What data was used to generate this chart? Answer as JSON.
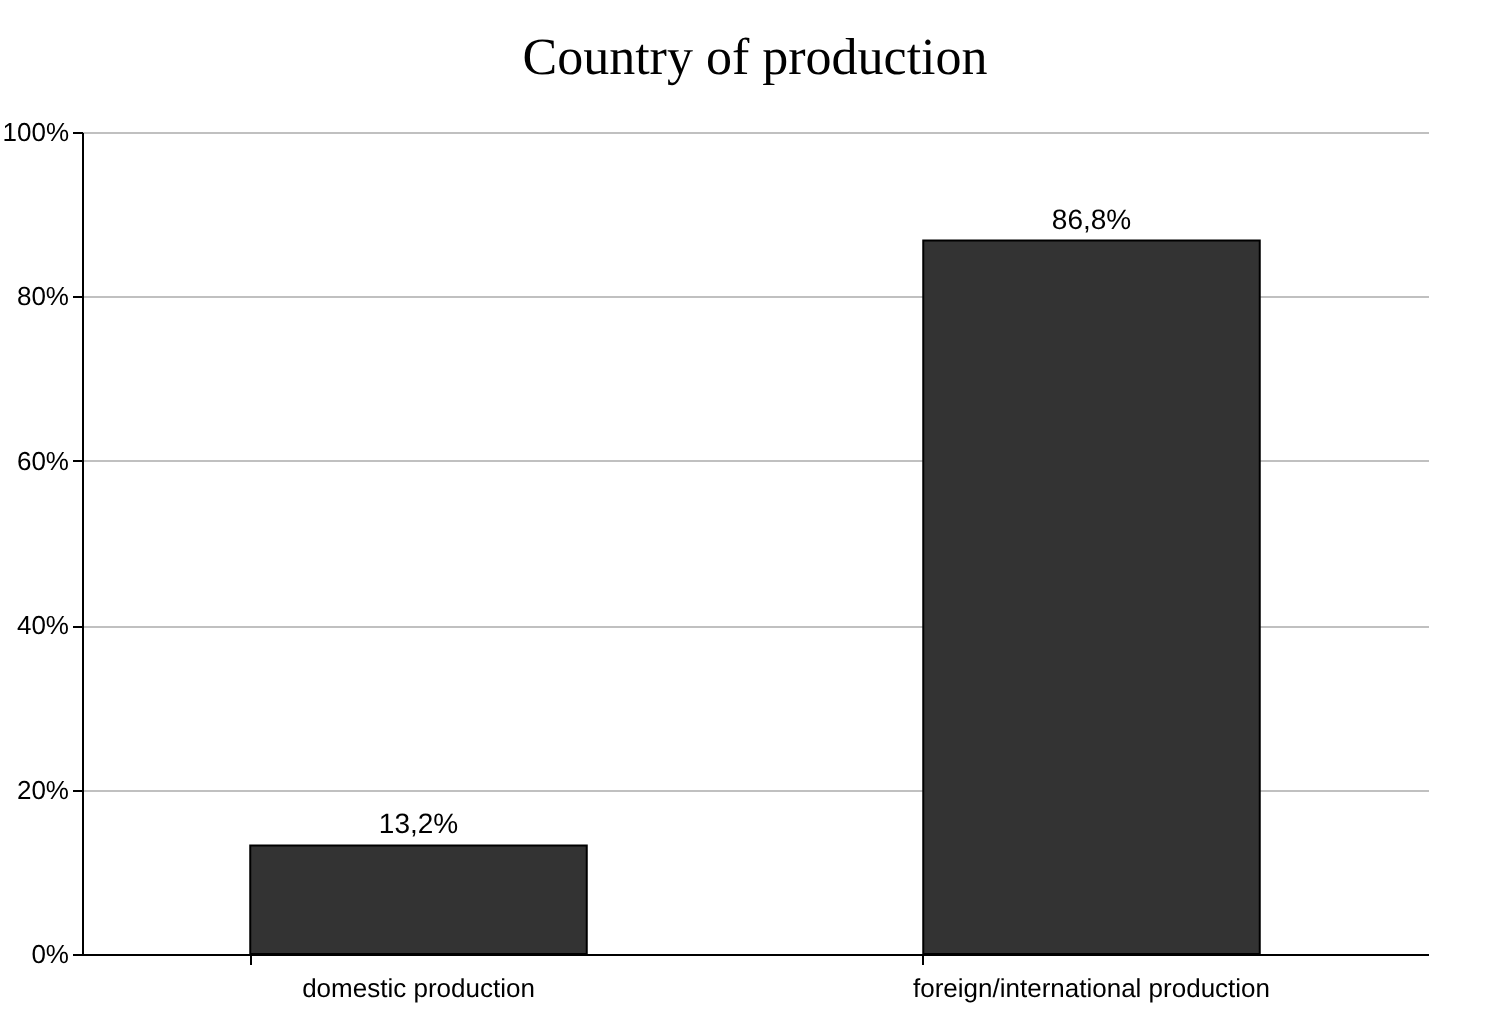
{
  "chart_data": {
    "type": "bar",
    "title": "Country of production",
    "categories": [
      "domestic production",
      "foreign/international production"
    ],
    "values": [
      13.2,
      86.8
    ],
    "color": "#333333",
    "value_labels": [
      "13,2%",
      "86,8%"
    ],
    "ylim": [
      0,
      100
    ],
    "yticks": [
      {
        "value": 0,
        "label": "0%"
      },
      {
        "value": 20,
        "label": "20%"
      },
      {
        "value": 40,
        "label": "40%"
      },
      {
        "value": 60,
        "label": "60%"
      },
      {
        "value": 80,
        "label": "80%"
      },
      {
        "value": 100,
        "label": "100%"
      }
    ],
    "grid": "y"
  }
}
